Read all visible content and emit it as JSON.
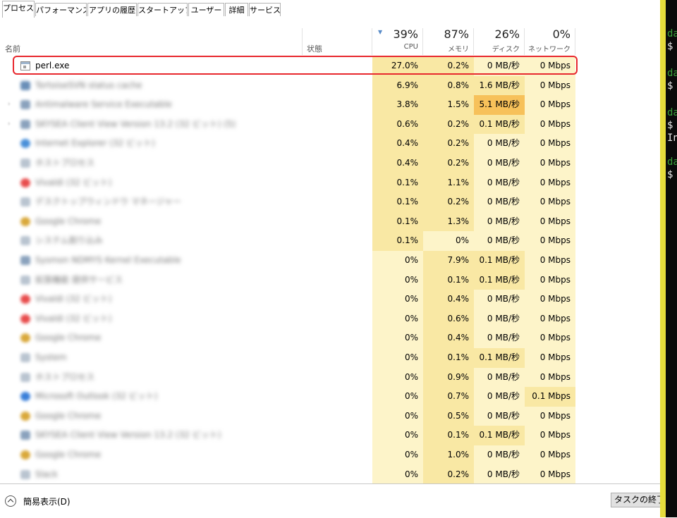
{
  "tabs": [
    {
      "label": "プロセス",
      "active": true
    },
    {
      "label": "パフォーマンス"
    },
    {
      "label": "アプリの履歴"
    },
    {
      "label": "スタートアップ"
    },
    {
      "label": "ユーザー"
    },
    {
      "label": "詳細"
    },
    {
      "label": "サービス"
    }
  ],
  "columns": {
    "name": "名前",
    "status": "状態",
    "cpu": {
      "percent": "39%",
      "label": "CPU"
    },
    "memory": {
      "percent": "87%",
      "label": "メモリ"
    },
    "disk": {
      "percent": "26%",
      "label": "ディスク"
    },
    "network": {
      "percent": "0%",
      "label": "ネットワーク"
    }
  },
  "processes": [
    {
      "name": "perl.exe",
      "cpu": "27.0%",
      "memory": "0.2%",
      "disk": "0 MB/秒",
      "network": "0 Mbps",
      "icon": "console-window-icon"
    },
    {
      "name": "TortoiseSVN status cache",
      "cpu": "6.9%",
      "memory": "0.8%",
      "disk": "1.6 MB/秒",
      "network": "0 Mbps",
      "icon": "tortoise-icon"
    },
    {
      "name": "Antimalware Service Executable",
      "cpu": "3.8%",
      "memory": "1.5%",
      "disk": "5.1 MB/秒",
      "network": "0 Mbps",
      "icon": "service-window-icon"
    },
    {
      "name": "SKYSEA Client View Version 13.2 (32 ビット) (5)",
      "cpu": "0.6%",
      "memory": "0.2%",
      "disk": "0.1 MB/秒",
      "network": "0 Mbps",
      "icon": "service-window-icon"
    },
    {
      "name": "Internet Explorer (32 ビット)",
      "cpu": "0.4%",
      "memory": "0.2%",
      "disk": "0 MB/秒",
      "network": "0 Mbps",
      "icon": "ie-icon"
    },
    {
      "name": "ホストプロセス",
      "cpu": "0.4%",
      "memory": "0.2%",
      "disk": "0 MB/秒",
      "network": "0 Mbps",
      "icon": "app-icon"
    },
    {
      "name": "Vivaldi (32 ビット)",
      "cpu": "0.1%",
      "memory": "1.1%",
      "disk": "0 MB/秒",
      "network": "0 Mbps",
      "icon": "vivaldi-icon"
    },
    {
      "name": "デスクトップウィンドウ マネージャー",
      "cpu": "0.1%",
      "memory": "0.2%",
      "disk": "0 MB/秒",
      "network": "0 Mbps",
      "icon": "app-icon"
    },
    {
      "name": "Google Chrome",
      "cpu": "0.1%",
      "memory": "1.3%",
      "disk": "0 MB/秒",
      "network": "0 Mbps",
      "icon": "chrome-icon"
    },
    {
      "name": "システム割り込み",
      "cpu": "0.1%",
      "memory": "0%",
      "disk": "0 MB/秒",
      "network": "0 Mbps",
      "icon": "app-icon"
    },
    {
      "name": "Sysmon NDMYS Kernel Executable",
      "cpu": "0%",
      "memory": "7.9%",
      "disk": "0.1 MB/秒",
      "network": "0 Mbps",
      "icon": "service-window-icon"
    },
    {
      "name": "拡張機能 提供サービス",
      "cpu": "0%",
      "memory": "0.1%",
      "disk": "0.1 MB/秒",
      "network": "0 Mbps",
      "icon": "app-icon"
    },
    {
      "name": "Vivaldi (32 ビット)",
      "cpu": "0%",
      "memory": "0.4%",
      "disk": "0 MB/秒",
      "network": "0 Mbps",
      "icon": "vivaldi-icon"
    },
    {
      "name": "Vivaldi (32 ビット)",
      "cpu": "0%",
      "memory": "0.6%",
      "disk": "0 MB/秒",
      "network": "0 Mbps",
      "icon": "vivaldi-icon"
    },
    {
      "name": "Google Chrome",
      "cpu": "0%",
      "memory": "0.4%",
      "disk": "0 MB/秒",
      "network": "0 Mbps",
      "icon": "chrome-icon"
    },
    {
      "name": "System",
      "cpu": "0%",
      "memory": "0.1%",
      "disk": "0.1 MB/秒",
      "network": "0 Mbps",
      "icon": "app-icon"
    },
    {
      "name": "ホストプロセス",
      "cpu": "0%",
      "memory": "0.9%",
      "disk": "0 MB/秒",
      "network": "0 Mbps",
      "icon": "app-icon"
    },
    {
      "name": "Microsoft Outlook (32 ビット)",
      "cpu": "0%",
      "memory": "0.7%",
      "disk": "0 MB/秒",
      "network": "0.1 Mbps",
      "icon": "outlook-icon"
    },
    {
      "name": "Google Chrome",
      "cpu": "0%",
      "memory": "0.5%",
      "disk": "0 MB/秒",
      "network": "0 Mbps",
      "icon": "chrome-icon"
    },
    {
      "name": "SKYSEA Client View Version 13.2 (32 ビット)",
      "cpu": "0%",
      "memory": "0.1%",
      "disk": "0.1 MB/秒",
      "network": "0 Mbps",
      "icon": "service-window-icon"
    },
    {
      "name": "Google Chrome",
      "cpu": "0%",
      "memory": "1.0%",
      "disk": "0 MB/秒",
      "network": "0 Mbps",
      "icon": "chrome-icon"
    },
    {
      "name": "Slack",
      "cpu": "0%",
      "memory": "0.2%",
      "disk": "0 MB/秒",
      "network": "0 Mbps",
      "icon": "app-icon"
    }
  ],
  "footer": {
    "fewer_details": "簡易表示(D)",
    "end_task": "タスクの終了(E)"
  },
  "terminal": {
    "lines": [
      "da",
      "$",
      "da",
      "$",
      "da",
      "$",
      "In",
      "da",
      "$"
    ]
  },
  "colors": {
    "cpu_heat_high": "#f9e8a4",
    "cpu_heat_low": "#fdf4c9",
    "disk_heat_high": "#f7c15a",
    "highlight_border": "#e8282e"
  }
}
